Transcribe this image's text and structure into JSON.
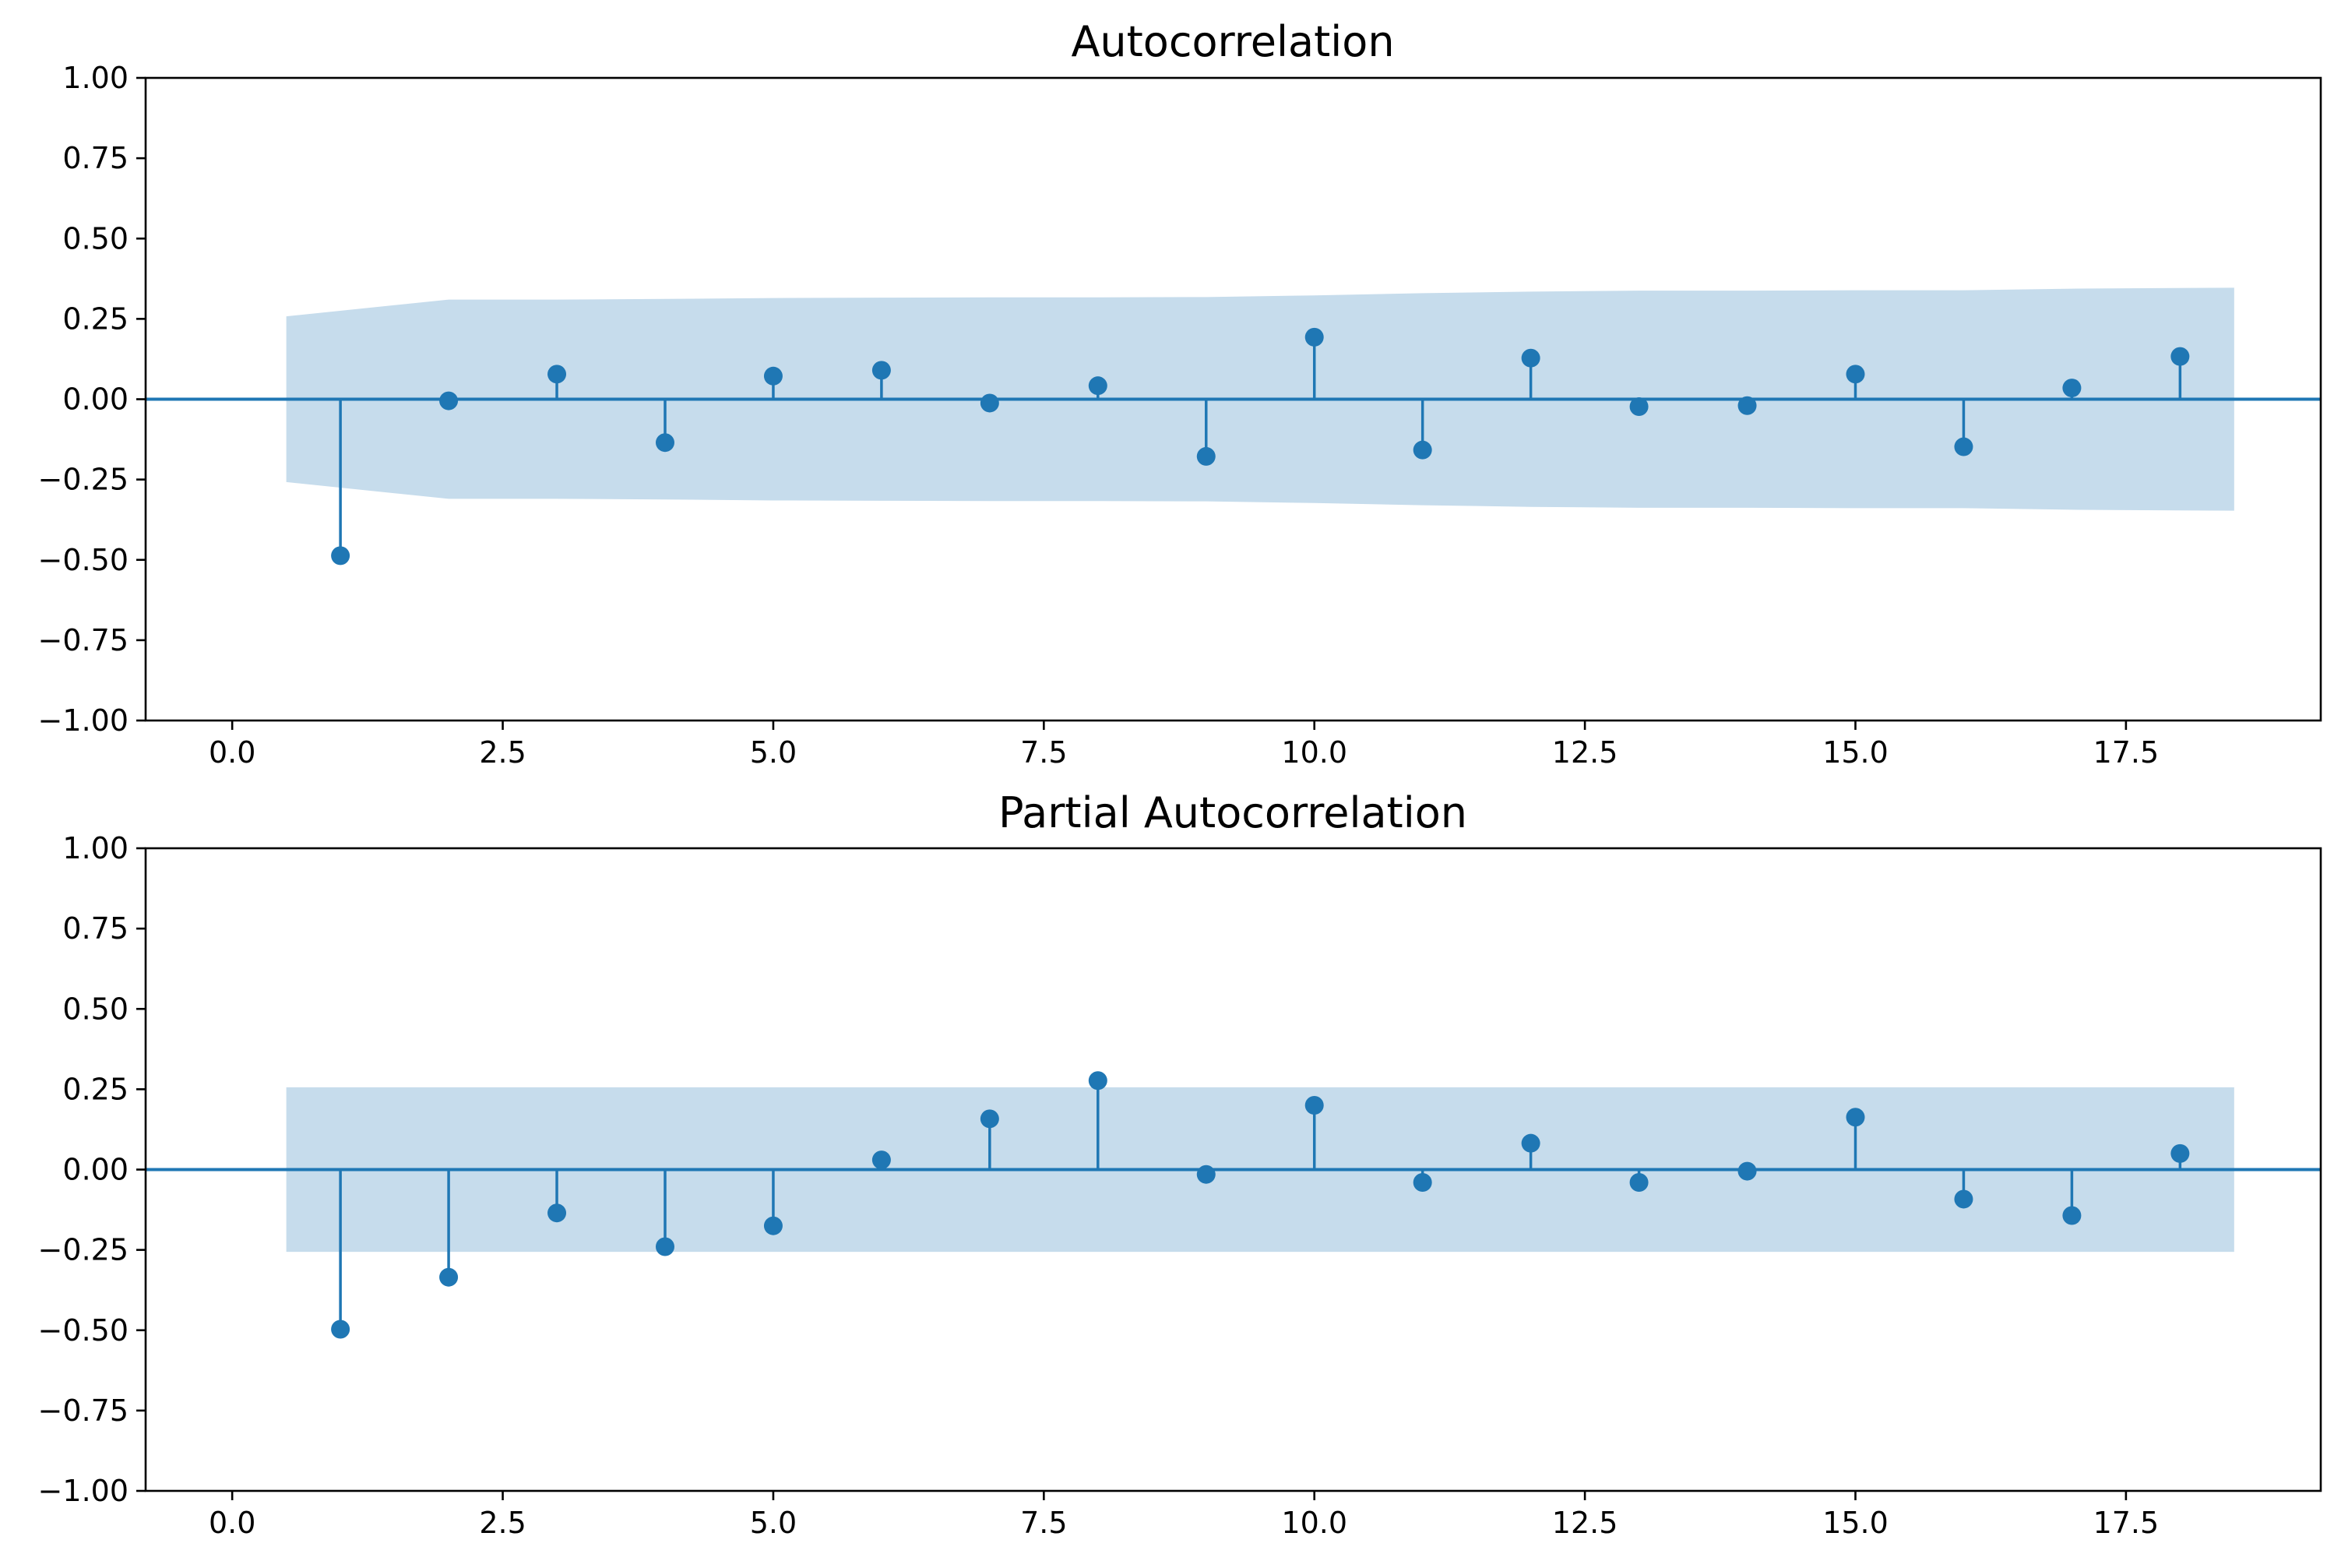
{
  "colors": {
    "marker": "#1f77b4",
    "confidence_band": "#c6dcec",
    "axis": "#000000",
    "background": "#ffffff"
  },
  "chart_data": [
    {
      "type": "stem",
      "title": "Autocorrelation",
      "xlabel": "",
      "ylabel": "",
      "xlim": [
        -0.8,
        19.3
      ],
      "ylim": [
        -1.0,
        1.0
      ],
      "x_ticks": [
        0.0,
        2.5,
        5.0,
        7.5,
        10.0,
        12.5,
        15.0,
        17.5
      ],
      "x_tick_labels": [
        "0.0",
        "2.5",
        "5.0",
        "7.5",
        "10.0",
        "12.5",
        "15.0",
        "17.5"
      ],
      "y_ticks": [
        1.0,
        0.75,
        0.5,
        0.25,
        0.0,
        -0.25,
        -0.5,
        -0.75,
        -1.0
      ],
      "y_tick_labels": [
        "1.00",
        "0.75",
        "0.50",
        "0.25",
        "0.00",
        "−0.25",
        "−0.50",
        "−0.75",
        "−1.00"
      ],
      "grid": false,
      "lags": [
        1,
        2,
        3,
        4,
        5,
        6,
        7,
        8,
        9,
        10,
        11,
        12,
        13,
        14,
        15,
        16,
        17,
        18
      ],
      "values": [
        -0.487,
        -0.005,
        0.078,
        -0.135,
        0.072,
        0.09,
        -0.012,
        0.042,
        -0.178,
        0.193,
        -0.158,
        0.128,
        -0.023,
        -0.02,
        0.078,
        -0.148,
        0.035,
        0.133
      ],
      "confidence_band": {
        "x": [
          0.5,
          2.0,
          3.0,
          4.0,
          5.0,
          6.0,
          7.0,
          8.0,
          9.0,
          10.0,
          11.0,
          12.0,
          13.0,
          14.0,
          15.0,
          16.0,
          17.0,
          18.5
        ],
        "upper": [
          0.258,
          0.31,
          0.31,
          0.312,
          0.315,
          0.316,
          0.317,
          0.317,
          0.318,
          0.323,
          0.33,
          0.335,
          0.338,
          0.338,
          0.339,
          0.339,
          0.344,
          0.347
        ],
        "lower": [
          -0.258,
          -0.31,
          -0.31,
          -0.312,
          -0.315,
          -0.316,
          -0.317,
          -0.317,
          -0.318,
          -0.323,
          -0.33,
          -0.335,
          -0.338,
          -0.338,
          -0.339,
          -0.339,
          -0.344,
          -0.347
        ]
      }
    },
    {
      "type": "stem",
      "title": "Partial Autocorrelation",
      "xlabel": "",
      "ylabel": "",
      "xlim": [
        -0.8,
        19.3
      ],
      "ylim": [
        -1.0,
        1.0
      ],
      "x_ticks": [
        0.0,
        2.5,
        5.0,
        7.5,
        10.0,
        12.5,
        15.0,
        17.5
      ],
      "x_tick_labels": [
        "0.0",
        "2.5",
        "5.0",
        "7.5",
        "10.0",
        "12.5",
        "15.0",
        "17.5"
      ],
      "y_ticks": [
        1.0,
        0.75,
        0.5,
        0.25,
        0.0,
        -0.25,
        -0.5,
        -0.75,
        -1.0
      ],
      "y_tick_labels": [
        "1.00",
        "0.75",
        "0.50",
        "0.25",
        "0.00",
        "−0.25",
        "−0.50",
        "−0.75",
        "−1.00"
      ],
      "grid": false,
      "lags": [
        1,
        2,
        3,
        4,
        5,
        6,
        7,
        8,
        9,
        10,
        11,
        12,
        13,
        14,
        15,
        16,
        17,
        18
      ],
      "values": [
        -0.497,
        -0.335,
        -0.135,
        -0.24,
        -0.175,
        0.03,
        0.158,
        0.277,
        -0.015,
        0.2,
        -0.04,
        0.082,
        -0.04,
        -0.005,
        0.163,
        -0.092,
        -0.143,
        0.05
      ],
      "confidence_band": {
        "x": [
          0.5,
          18.5
        ],
        "upper": [
          0.256,
          0.256
        ],
        "lower": [
          -0.256,
          -0.256
        ]
      }
    }
  ]
}
